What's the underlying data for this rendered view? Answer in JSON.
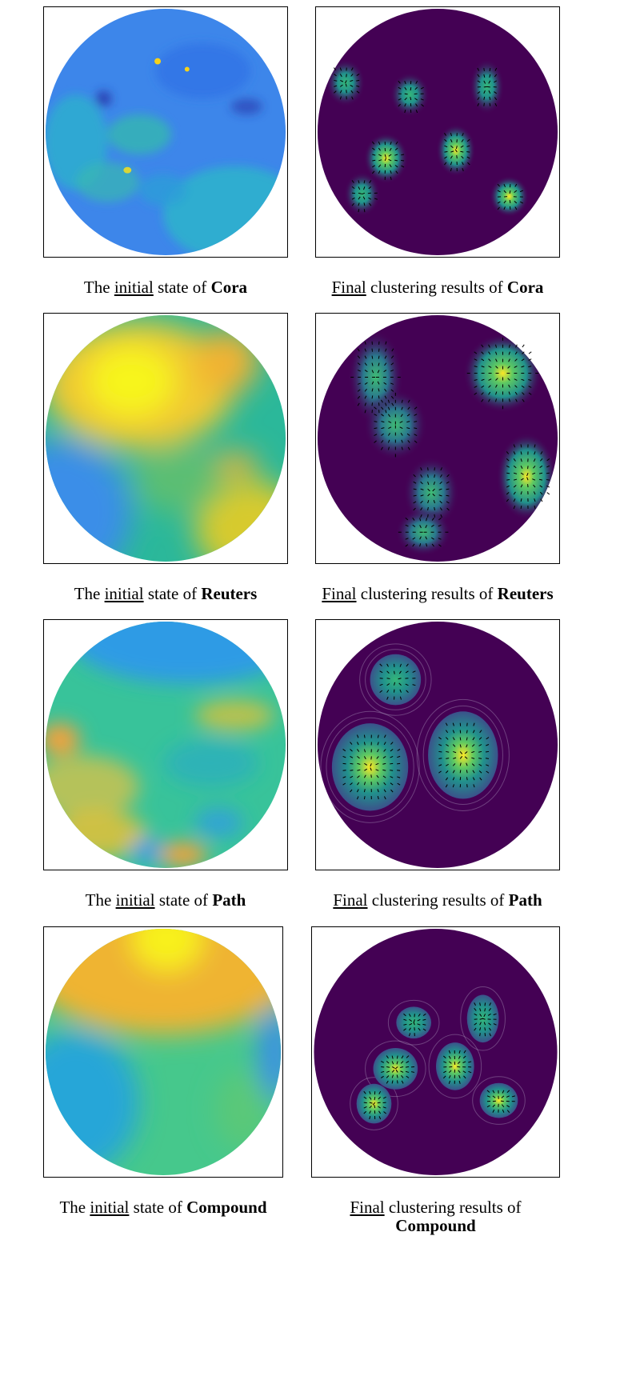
{
  "figure": {
    "rows": [
      {
        "dataset": "Cora",
        "initial_caption": {
          "prefix": "The ",
          "emph": "initial",
          "middle": " state of ",
          "name": "Cora"
        },
        "final_caption": {
          "emph": "Final",
          "middle": " clustering results of ",
          "name": "Cora"
        },
        "initial_colors": {
          "base": "#3d86ea",
          "secondary": "#2ab6c9",
          "accent": "#f6d21a",
          "dark": "#2433a8"
        },
        "final_colors": {
          "background": "#440154",
          "cluster_mid": "#21918c",
          "cluster_peak": "#fde725"
        }
      },
      {
        "dataset": "Reuters",
        "initial_caption": {
          "prefix": "The ",
          "emph": "initial",
          "middle": " state of ",
          "name": "Reuters"
        },
        "final_caption": {
          "emph": "Final",
          "middle": " clustering results of ",
          "name": "Reuters"
        },
        "initial_colors": {
          "base": "#2bb89a",
          "secondary": "#3a8ee8",
          "accent": "#f7f51a",
          "warm": "#f1b233"
        },
        "final_colors": {
          "background": "#440154",
          "cluster_mid": "#21918c",
          "cluster_peak": "#fde725"
        }
      },
      {
        "dataset": "Path",
        "initial_caption": {
          "prefix": "The ",
          "emph": "initial",
          "middle": " state of ",
          "name": "Path"
        },
        "final_caption": {
          "emph": "Final",
          "middle": " clustering results of ",
          "name": "Path"
        },
        "initial_colors": {
          "base": "#38c39a",
          "secondary": "#2f9be5",
          "accent": "#f0c030",
          "warm": "#f6a13a"
        },
        "final_colors": {
          "background": "#440154",
          "cluster_mid": "#21918c",
          "cluster_peak": "#fde725"
        }
      },
      {
        "dataset": "Compound",
        "initial_caption": {
          "prefix": "The ",
          "emph": "initial",
          "middle": " state of ",
          "name": "Compound"
        },
        "final_caption": {
          "emph": "Final",
          "middle": " clustering results of",
          "name": "Compound"
        },
        "initial_colors": {
          "base": "#46c88c",
          "secondary": "#25a6d8",
          "accent": "#f8f11a",
          "warm": "#efb431"
        },
        "final_colors": {
          "background": "#440154",
          "cluster_mid": "#21918c",
          "cluster_peak": "#fde725"
        }
      }
    ]
  }
}
